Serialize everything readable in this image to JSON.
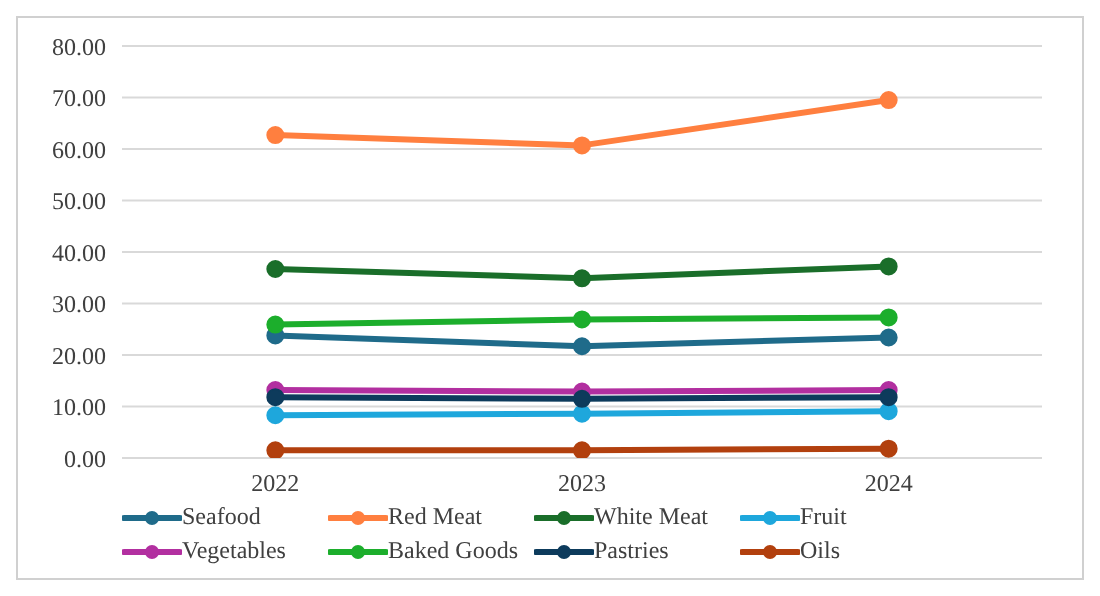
{
  "chart_data": {
    "type": "line",
    "categories": [
      "2022",
      "2023",
      "2024"
    ],
    "series": [
      {
        "name": "Seafood",
        "color": "#1f6b8a",
        "values": [
          23.8,
          21.7,
          23.4
        ]
      },
      {
        "name": "Red Meat",
        "color": "#ff7f3f",
        "values": [
          62.7,
          60.7,
          69.5
        ]
      },
      {
        "name": "White Meat",
        "color": "#1a6e2a",
        "values": [
          36.7,
          34.9,
          37.2
        ]
      },
      {
        "name": "Fruit",
        "color": "#1ea7dc",
        "values": [
          8.3,
          8.6,
          9.1
        ]
      },
      {
        "name": "Vegetables",
        "color": "#b22fa0",
        "values": [
          13.2,
          12.9,
          13.2
        ]
      },
      {
        "name": "Baked Goods",
        "color": "#1cae2c",
        "values": [
          25.9,
          26.9,
          27.3
        ]
      },
      {
        "name": "Pastries",
        "color": "#0d3b5c",
        "values": [
          11.8,
          11.5,
          11.8
        ]
      },
      {
        "name": "Oils",
        "color": "#b2400e",
        "values": [
          1.5,
          1.5,
          1.8
        ]
      }
    ],
    "ylim": [
      0,
      80
    ],
    "yticks": [
      {
        "value": 0,
        "label": "0.00"
      },
      {
        "value": 10,
        "label": "10.00"
      },
      {
        "value": 20,
        "label": "20.00"
      },
      {
        "value": 30,
        "label": "30.00"
      },
      {
        "value": 40,
        "label": "40.00"
      },
      {
        "value": 50,
        "label": "50.00"
      },
      {
        "value": 60,
        "label": "60.00"
      },
      {
        "value": 70,
        "label": "70.00"
      },
      {
        "value": 80,
        "label": "80.00"
      }
    ],
    "grid": "y",
    "legend": "bottom",
    "marker": "circle",
    "line_style": "solid"
  }
}
